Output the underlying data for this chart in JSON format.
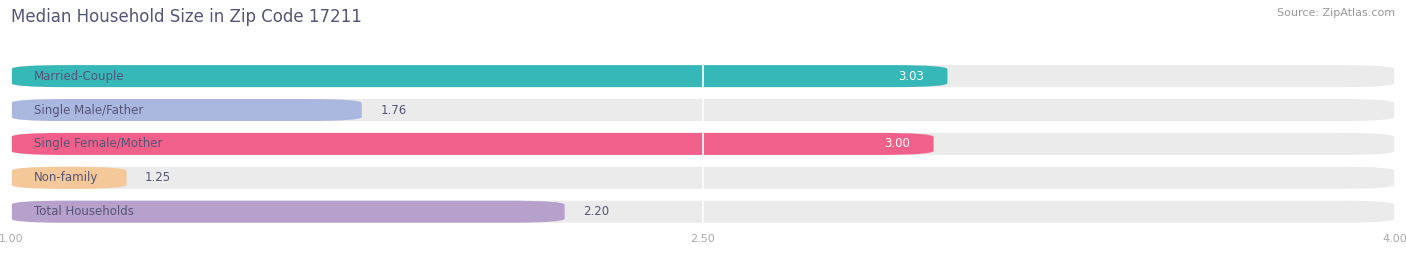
{
  "title": "Median Household Size in Zip Code 17211",
  "source": "Source: ZipAtlas.com",
  "categories": [
    "Married-Couple",
    "Single Male/Father",
    "Single Female/Mother",
    "Non-family",
    "Total Households"
  ],
  "values": [
    3.03,
    1.76,
    3.0,
    1.25,
    2.2
  ],
  "bar_colors": [
    "#36b8b8",
    "#aab8e0",
    "#f0608a",
    "#f5c89a",
    "#b8a0cc"
  ],
  "xlim_min": 1.0,
  "xlim_max": 4.0,
  "xticks": [
    1.0,
    2.5,
    4.0
  ],
  "xtick_labels": [
    "1.00",
    "2.50",
    "4.00"
  ],
  "bg_color": "#ffffff",
  "row_bg_color": "#ebebeb",
  "title_color": "#555577",
  "source_color": "#999999",
  "label_color": "#555577",
  "value_color_dark": "#555577",
  "value_color_light": "#ffffff",
  "grid_color": "#ffffff",
  "title_fontsize": 12,
  "label_fontsize": 8.5,
  "value_fontsize": 8.5,
  "source_fontsize": 8,
  "bar_height": 0.65,
  "value_inside_threshold": 2.5
}
